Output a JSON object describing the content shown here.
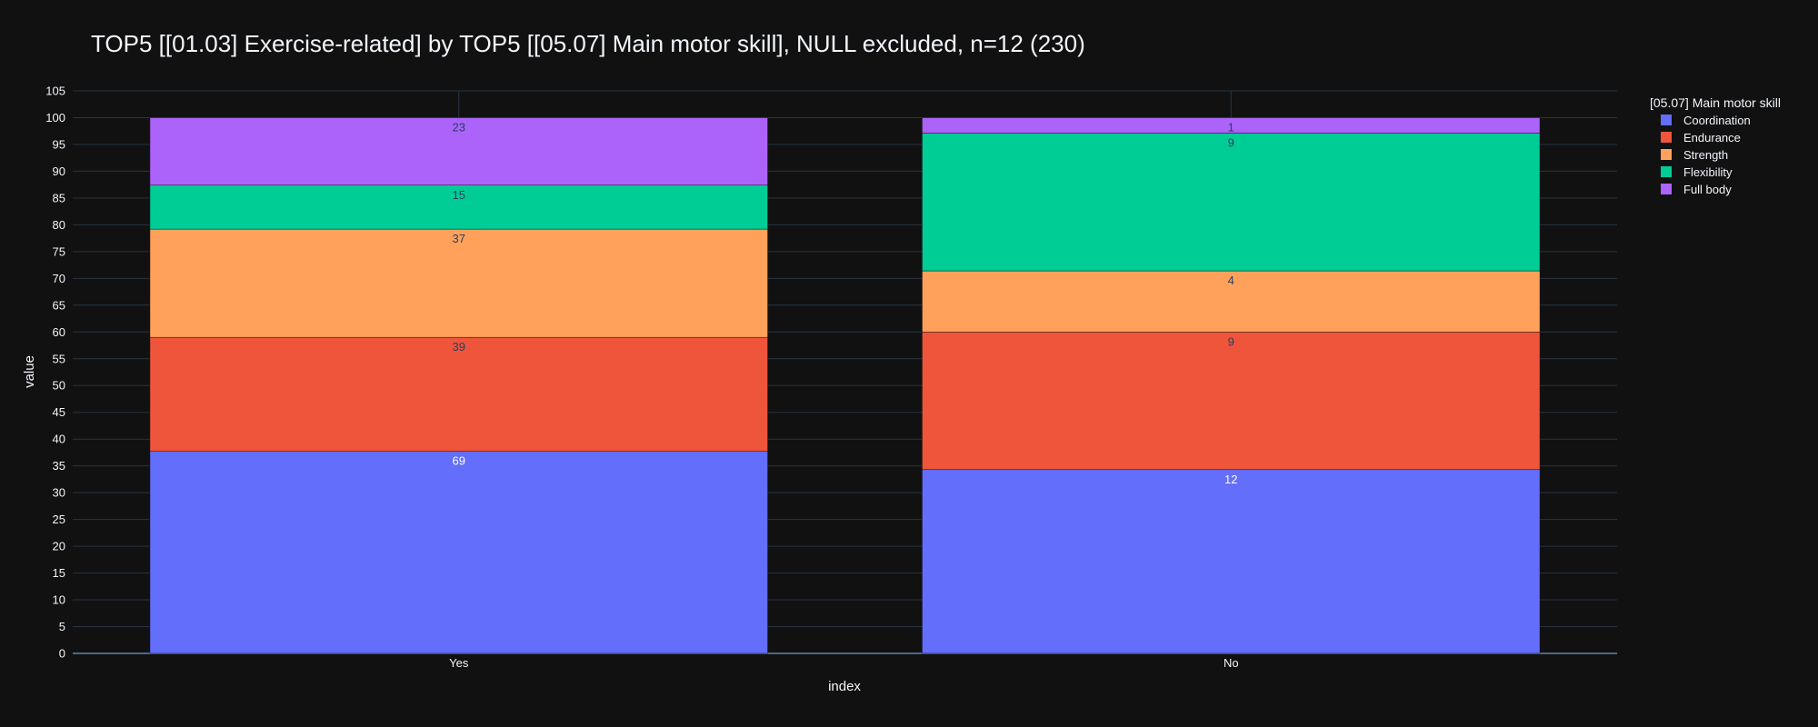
{
  "chart_data": {
    "type": "bar",
    "barmode": "stack",
    "title": "TOP5 [[01.03] Exercise-related] by TOP5 [[05.07] Main motor skill], NULL excluded, n=12 (230)",
    "xlabel": "index",
    "ylabel": "value",
    "ylim": [
      0,
      105
    ],
    "ytick_step": 5,
    "grid": true,
    "legend_title": "[05.07] Main motor skill",
    "legend_position": "top-right",
    "categories": [
      "Yes",
      "No"
    ],
    "series": [
      {
        "name": "Coordination",
        "color": "#636efa",
        "label_color": "#ffffff",
        "values": [
          37.7,
          34.3
        ],
        "labels": [
          "69",
          "12"
        ]
      },
      {
        "name": "Endurance",
        "color": "#ef553b",
        "label_color": "#2a3f5f",
        "values": [
          21.3,
          25.7
        ],
        "labels": [
          "39",
          "9"
        ]
      },
      {
        "name": "Strength",
        "color": "#ffa15a",
        "label_color": "#2a3f5f",
        "values": [
          20.2,
          11.4
        ],
        "labels": [
          "37",
          "4"
        ]
      },
      {
        "name": "Flexibility",
        "color": "#00cc96",
        "label_color": "#2a3f5f",
        "values": [
          8.2,
          25.7
        ],
        "labels": [
          "15",
          "9"
        ]
      },
      {
        "name": "Full body",
        "color": "#ab63fa",
        "label_color": "#2a3f5f",
        "values": [
          12.6,
          2.9
        ],
        "labels": [
          "23",
          "1"
        ]
      }
    ]
  }
}
